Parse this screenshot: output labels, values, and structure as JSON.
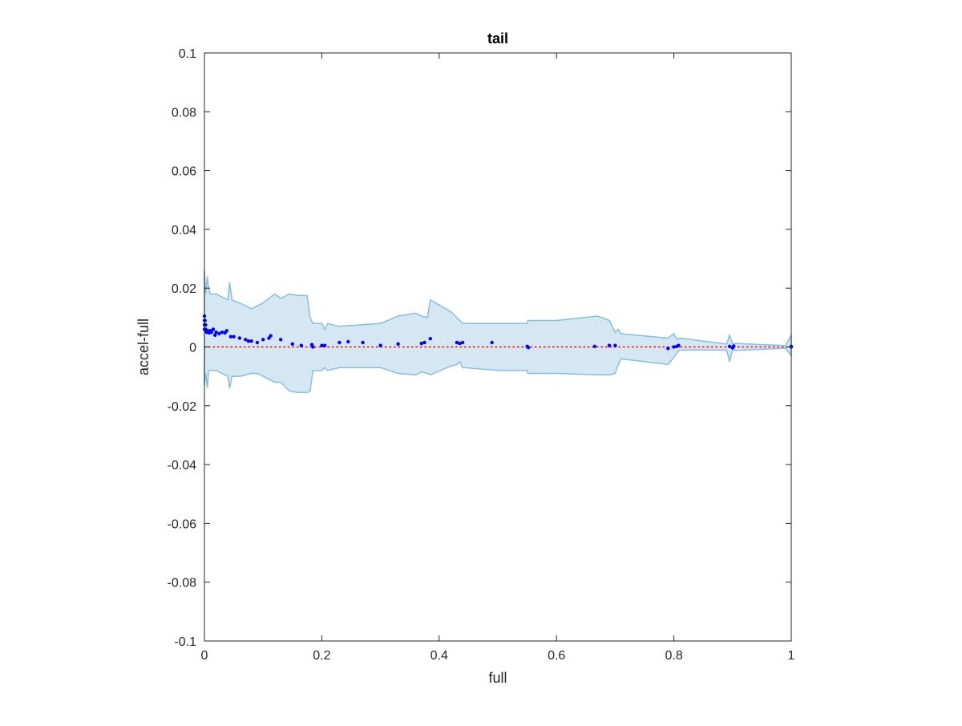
{
  "chart_data": {
    "type": "scatter",
    "title": "tail",
    "xlabel": "full",
    "ylabel": "accel-full",
    "xlim": [
      0,
      1
    ],
    "ylim": [
      -0.1,
      0.1
    ],
    "xticks": [
      0,
      0.2,
      0.4,
      0.6,
      0.8,
      1
    ],
    "xtick_labels": [
      "0",
      "0.2",
      "0.4",
      "0.6",
      "0.8",
      "1"
    ],
    "yticks": [
      -0.1,
      -0.08,
      -0.06,
      -0.04,
      -0.02,
      0,
      0.02,
      0.04,
      0.06,
      0.08,
      0.1
    ],
    "ytick_labels": [
      "-0.1",
      "-0.08",
      "-0.06",
      "-0.04",
      "-0.02",
      "0",
      "0.02",
      "0.04",
      "0.06",
      "0.08",
      "0.1"
    ],
    "grid": false,
    "box": true,
    "colors": {
      "points": "#0000ff",
      "band_fill": "#d6e7f4",
      "band_edge": "#86bfe0",
      "zero_line": "#ff0000",
      "axes": "#262626"
    },
    "band": {
      "x": [
        0,
        0.002,
        0.005,
        0.007,
        0.01,
        0.02,
        0.04,
        0.043,
        0.047,
        0.06,
        0.08,
        0.09,
        0.1,
        0.12,
        0.13,
        0.145,
        0.16,
        0.175,
        0.18,
        0.185,
        0.2,
        0.205,
        0.21,
        0.23,
        0.3,
        0.33,
        0.36,
        0.37,
        0.38,
        0.385,
        0.42,
        0.43,
        0.435,
        0.44,
        0.5,
        0.55,
        0.551,
        0.6,
        0.67,
        0.69,
        0.7,
        0.705,
        0.71,
        0.79,
        0.8,
        0.805,
        0.81,
        0.89,
        0.895,
        0.9,
        0.905,
        0.99,
        1
      ],
      "upper": [
        0.026,
        0.018,
        0.024,
        0.02,
        0.018,
        0.018,
        0.016,
        0.022,
        0.016,
        0.015,
        0.013,
        0.014,
        0.015,
        0.018,
        0.0165,
        0.018,
        0.0175,
        0.0175,
        0.01,
        0.008,
        0.008,
        0.006,
        0.008,
        0.007,
        0.008,
        0.0105,
        0.0115,
        0.0105,
        0.01,
        0.016,
        0.012,
        0.01,
        0.009,
        0.008,
        0.008,
        0.008,
        0.009,
        0.009,
        0.0105,
        0.009,
        0.005,
        0.006,
        0.0045,
        0.003,
        0.0045,
        0.0025,
        0.003,
        0.001,
        0.004,
        0.001,
        0.0012,
        0.0005,
        0.004
      ],
      "lower": [
        -0.013,
        -0.009,
        -0.014,
        -0.008,
        -0.008,
        -0.008,
        -0.01,
        -0.014,
        -0.01,
        -0.01,
        -0.009,
        -0.009,
        -0.01,
        -0.012,
        -0.012,
        -0.015,
        -0.0155,
        -0.0155,
        -0.015,
        -0.008,
        -0.008,
        -0.007,
        -0.008,
        -0.007,
        -0.007,
        -0.009,
        -0.0095,
        -0.0085,
        -0.009,
        -0.0095,
        -0.0065,
        -0.006,
        -0.005,
        -0.007,
        -0.008,
        -0.008,
        -0.009,
        -0.009,
        -0.0095,
        -0.0095,
        -0.009,
        -0.006,
        -0.004,
        -0.006,
        -0.0035,
        -0.002,
        -0.001,
        -0.001,
        -0.005,
        -0.001,
        -0.0012,
        -0.0004,
        -0.003
      ]
    },
    "points": {
      "x": [
        0,
        0,
        0,
        0,
        0.001,
        0.002,
        0.002,
        0.003,
        0.004,
        0.006,
        0.008,
        0.01,
        0.012,
        0.015,
        0.018,
        0.02,
        0.025,
        0.03,
        0.035,
        0.038,
        0.045,
        0.05,
        0.06,
        0.07,
        0.075,
        0.08,
        0.09,
        0.1,
        0.11,
        0.113,
        0.13,
        0.15,
        0.165,
        0.183,
        0.185,
        0.2,
        0.205,
        0.23,
        0.245,
        0.27,
        0.3,
        0.33,
        0.37,
        0.375,
        0.385,
        0.43,
        0.435,
        0.44,
        0.49,
        0.55,
        0.552,
        0.665,
        0.69,
        0.7,
        0.79,
        0.8,
        0.805,
        0.808,
        0.895,
        0.9,
        0.902,
        1,
        1
      ],
      "y": [
        0.0105,
        0.009,
        0.0075,
        0.006,
        0.009,
        0.0075,
        0.006,
        0.0055,
        0.005,
        0.0055,
        0.0048,
        0.0055,
        0.005,
        0.006,
        0.004,
        0.005,
        0.0045,
        0.005,
        0.0048,
        0.0055,
        0.0035,
        0.0035,
        0.003,
        0.0025,
        0.002,
        0.002,
        0.0015,
        0.0025,
        0.003,
        0.0038,
        0.0025,
        0.001,
        0.0005,
        0.0008,
        0,
        0.0005,
        0.0005,
        0.0015,
        0.0018,
        0.0015,
        0.0005,
        0.001,
        0.0012,
        0.0015,
        0.0028,
        0.0015,
        0.0012,
        0.0015,
        0.0015,
        0.0002,
        -0.0002,
        0.0002,
        0.0005,
        0.0005,
        -0.0005,
        0,
        0.0002,
        0.0005,
        0.0002,
        -0.0003,
        0.0003,
        0,
        0.0002
      ]
    }
  }
}
